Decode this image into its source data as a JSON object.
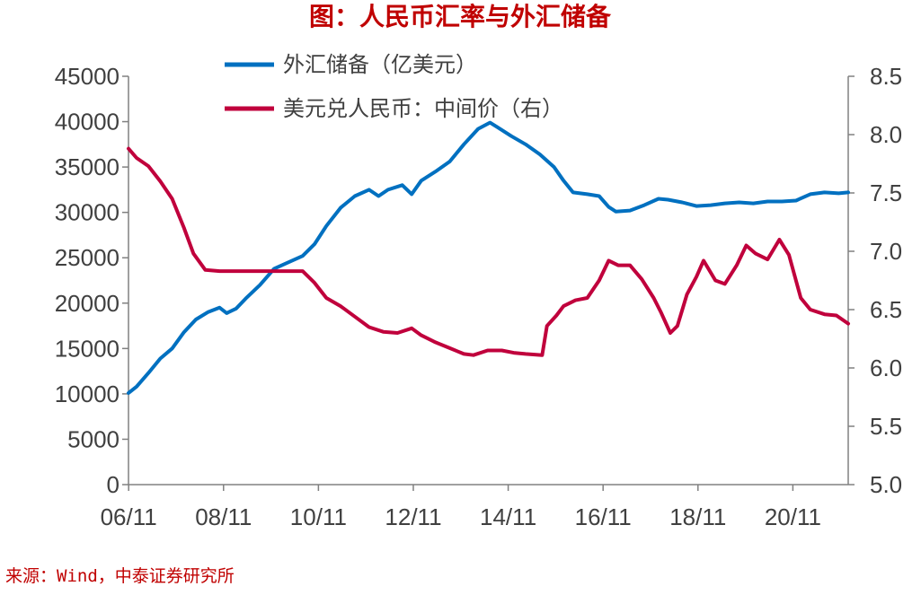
{
  "title": "图：人民币汇率与外汇储备",
  "source": "来源：Wind，中泰证券研究所",
  "colors": {
    "title": "#c00000",
    "series1": "#0070c0",
    "series2": "#c0003c",
    "axis": "#808080",
    "text": "#404040",
    "source": "#c00000"
  },
  "chart_data": {
    "type": "line",
    "title": "图：人民币汇率与外汇储备",
    "xlabel": "",
    "ylabel": "",
    "x_ticks": [
      "06/11",
      "08/11",
      "10/11",
      "12/11",
      "14/11",
      "16/11",
      "18/11",
      "20/11"
    ],
    "y_left": {
      "range": [
        0,
        45000
      ],
      "ticks": [
        "0",
        "5000",
        "10000",
        "15000",
        "20000",
        "25000",
        "30000",
        "35000",
        "40000",
        "45000"
      ]
    },
    "y_right": {
      "range": [
        5.0,
        8.5
      ],
      "ticks": [
        "5.0",
        "5.5",
        "6.0",
        "6.5",
        "7.0",
        "7.5",
        "8.0",
        "8.5"
      ]
    },
    "x_range": [
      2006.83,
      2022.0
    ],
    "grid": false,
    "legend_position": "top",
    "series": [
      {
        "name": "外汇储备（亿美元）",
        "axis": "left",
        "points": [
          [
            2006.83,
            10100
          ],
          [
            2007.0,
            10800
          ],
          [
            2007.25,
            12300
          ],
          [
            2007.5,
            13900
          ],
          [
            2007.75,
            15000
          ],
          [
            2008.0,
            16800
          ],
          [
            2008.25,
            18200
          ],
          [
            2008.5,
            19000
          ],
          [
            2008.75,
            19500
          ],
          [
            2008.9,
            18900
          ],
          [
            2009.1,
            19400
          ],
          [
            2009.3,
            20500
          ],
          [
            2009.6,
            22000
          ],
          [
            2009.9,
            23800
          ],
          [
            2010.2,
            24500
          ],
          [
            2010.5,
            25200
          ],
          [
            2010.75,
            26500
          ],
          [
            2011.0,
            28500
          ],
          [
            2011.3,
            30500
          ],
          [
            2011.6,
            31800
          ],
          [
            2011.9,
            32500
          ],
          [
            2012.1,
            31800
          ],
          [
            2012.3,
            32500
          ],
          [
            2012.6,
            33000
          ],
          [
            2012.8,
            32000
          ],
          [
            2013.0,
            33500
          ],
          [
            2013.3,
            34500
          ],
          [
            2013.6,
            35600
          ],
          [
            2013.9,
            37500
          ],
          [
            2014.2,
            39200
          ],
          [
            2014.45,
            39900
          ],
          [
            2014.6,
            39400
          ],
          [
            2014.9,
            38400
          ],
          [
            2015.2,
            37500
          ],
          [
            2015.5,
            36400
          ],
          [
            2015.8,
            35000
          ],
          [
            2016.0,
            33500
          ],
          [
            2016.2,
            32200
          ],
          [
            2016.5,
            32000
          ],
          [
            2016.75,
            31800
          ],
          [
            2016.95,
            30600
          ],
          [
            2017.1,
            30100
          ],
          [
            2017.4,
            30200
          ],
          [
            2017.7,
            30800
          ],
          [
            2018.0,
            31500
          ],
          [
            2018.2,
            31400
          ],
          [
            2018.5,
            31100
          ],
          [
            2018.8,
            30700
          ],
          [
            2019.1,
            30800
          ],
          [
            2019.4,
            31000
          ],
          [
            2019.7,
            31100
          ],
          [
            2020.0,
            31000
          ],
          [
            2020.3,
            31200
          ],
          [
            2020.6,
            31200
          ],
          [
            2020.9,
            31300
          ],
          [
            2021.2,
            32000
          ],
          [
            2021.5,
            32200
          ],
          [
            2021.8,
            32100
          ],
          [
            2022.0,
            32200
          ]
        ]
      },
      {
        "name": "美元兑人民币：中间价（右）",
        "axis": "right",
        "points": [
          [
            2006.83,
            7.88
          ],
          [
            2007.0,
            7.8
          ],
          [
            2007.25,
            7.73
          ],
          [
            2007.5,
            7.6
          ],
          [
            2007.75,
            7.45
          ],
          [
            2008.0,
            7.2
          ],
          [
            2008.2,
            6.98
          ],
          [
            2008.45,
            6.84
          ],
          [
            2008.75,
            6.83
          ],
          [
            2009.0,
            6.83
          ],
          [
            2009.5,
            6.83
          ],
          [
            2010.0,
            6.83
          ],
          [
            2010.5,
            6.83
          ],
          [
            2010.75,
            6.73
          ],
          [
            2011.0,
            6.6
          ],
          [
            2011.3,
            6.53
          ],
          [
            2011.6,
            6.44
          ],
          [
            2011.9,
            6.35
          ],
          [
            2012.2,
            6.31
          ],
          [
            2012.5,
            6.3
          ],
          [
            2012.8,
            6.34
          ],
          [
            2013.0,
            6.28
          ],
          [
            2013.3,
            6.22
          ],
          [
            2013.6,
            6.17
          ],
          [
            2013.9,
            6.12
          ],
          [
            2014.1,
            6.11
          ],
          [
            2014.4,
            6.15
          ],
          [
            2014.7,
            6.15
          ],
          [
            2014.95,
            6.13
          ],
          [
            2015.2,
            6.12
          ],
          [
            2015.55,
            6.11
          ],
          [
            2015.65,
            6.36
          ],
          [
            2015.85,
            6.45
          ],
          [
            2016.0,
            6.53
          ],
          [
            2016.25,
            6.58
          ],
          [
            2016.5,
            6.6
          ],
          [
            2016.75,
            6.75
          ],
          [
            2016.95,
            6.92
          ],
          [
            2017.15,
            6.88
          ],
          [
            2017.4,
            6.88
          ],
          [
            2017.65,
            6.76
          ],
          [
            2017.9,
            6.6
          ],
          [
            2018.05,
            6.48
          ],
          [
            2018.25,
            6.3
          ],
          [
            2018.4,
            6.36
          ],
          [
            2018.6,
            6.63
          ],
          [
            2018.8,
            6.78
          ],
          [
            2018.95,
            6.92
          ],
          [
            2019.2,
            6.75
          ],
          [
            2019.4,
            6.72
          ],
          [
            2019.65,
            6.88
          ],
          [
            2019.85,
            7.05
          ],
          [
            2020.05,
            6.98
          ],
          [
            2020.3,
            6.93
          ],
          [
            2020.55,
            7.1
          ],
          [
            2020.75,
            6.97
          ],
          [
            2021.0,
            6.6
          ],
          [
            2021.2,
            6.5
          ],
          [
            2021.5,
            6.46
          ],
          [
            2021.75,
            6.45
          ],
          [
            2022.0,
            6.38
          ]
        ]
      }
    ]
  }
}
